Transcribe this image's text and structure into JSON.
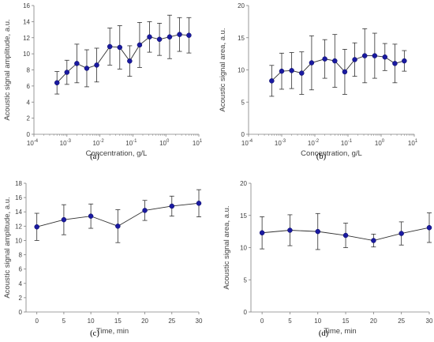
{
  "chart_data": [
    {
      "id": "a",
      "type": "scatter",
      "panel_label": "(a)",
      "xlabel": "Concentration, g/L",
      "ylabel": "Acoustic signal amplitude, a.u.",
      "xscale": "log",
      "xlim": [
        0.0001,
        10
      ],
      "ylim": [
        0,
        16
      ],
      "x_ticks": [
        0.0001,
        0.001,
        0.01,
        0.1,
        1,
        10
      ],
      "x_tick_labels": [
        [
          "10",
          "-4"
        ],
        [
          "10",
          "-3"
        ],
        [
          "10",
          "-2"
        ],
        [
          "10",
          "-1"
        ],
        [
          "10",
          "0"
        ],
        [
          "10",
          "1"
        ]
      ],
      "y_ticks": [
        0,
        2,
        4,
        6,
        8,
        10,
        12,
        14,
        16
      ],
      "y_tick_labels": [
        "0",
        "2",
        "4",
        "6",
        "8",
        "10",
        "12",
        "14",
        "16"
      ],
      "grid": false,
      "marker_color": "#1a1aa0",
      "series": [
        {
          "x": [
            0.0005,
            0.001,
            0.002,
            0.004,
            0.008,
            0.02,
            0.04,
            0.08,
            0.16,
            0.32,
            0.64,
            1.3,
            2.6,
            5.0
          ],
          "y": [
            6.4,
            7.7,
            8.8,
            8.2,
            8.6,
            10.9,
            10.8,
            9.1,
            11.1,
            12.1,
            11.8,
            12.1,
            12.4,
            12.3
          ],
          "err": [
            1.4,
            1.5,
            2.4,
            2.3,
            2.1,
            2.3,
            2.7,
            1.9,
            2.8,
            1.9,
            2.0,
            2.7,
            2.1,
            2.2
          ]
        }
      ]
    },
    {
      "id": "b",
      "type": "scatter",
      "panel_label": "(b)",
      "xlabel": "Concentration, g/L",
      "ylabel": "Acoustic signal area, a.u.",
      "xscale": "log",
      "xlim": [
        0.0001,
        10
      ],
      "ylim": [
        0,
        20
      ],
      "x_ticks": [
        0.0001,
        0.001,
        0.01,
        0.1,
        1,
        10
      ],
      "x_tick_labels": [
        [
          "10",
          "-4"
        ],
        [
          "10",
          "-3"
        ],
        [
          "10",
          "-2"
        ],
        [
          "10",
          "-1"
        ],
        [
          "10",
          "0"
        ],
        [
          "10",
          "1"
        ]
      ],
      "y_ticks": [
        0,
        5,
        10,
        15,
        20
      ],
      "y_tick_labels": [
        "0",
        "5",
        "10",
        "15",
        "20"
      ],
      "grid": false,
      "marker_color": "#1a1aa0",
      "series": [
        {
          "x": [
            0.0005,
            0.001,
            0.002,
            0.004,
            0.008,
            0.02,
            0.04,
            0.08,
            0.16,
            0.32,
            0.64,
            1.3,
            2.6,
            5.0
          ],
          "y": [
            8.3,
            9.8,
            9.9,
            9.5,
            11.1,
            11.7,
            11.4,
            9.7,
            11.6,
            12.2,
            12.2,
            12.0,
            11.0,
            11.4
          ],
          "err": [
            2.4,
            2.8,
            2.8,
            3.3,
            4.2,
            3.0,
            4.1,
            3.5,
            2.6,
            4.2,
            3.5,
            2.1,
            3.0,
            1.6
          ]
        }
      ]
    },
    {
      "id": "c",
      "type": "scatter",
      "panel_label": "(c)",
      "xlabel": "Time, min",
      "ylabel": "Acoustic signal amplitude, a.u.",
      "xscale": "linear",
      "xlim": [
        -2,
        30
      ],
      "ylim": [
        0,
        18
      ],
      "x_ticks": [
        0,
        5,
        10,
        15,
        20,
        25,
        30
      ],
      "x_tick_labels": [
        "0",
        "5",
        "10",
        "15",
        "20",
        "25",
        "30"
      ],
      "y_ticks": [
        0,
        2,
        4,
        6,
        8,
        10,
        12,
        14,
        16,
        18
      ],
      "y_tick_labels": [
        "0",
        "2",
        "4",
        "6",
        "8",
        "10",
        "12",
        "14",
        "16",
        "18"
      ],
      "grid": false,
      "marker_color": "#1a1aa0",
      "series": [
        {
          "x": [
            0,
            5,
            10,
            15,
            20,
            25,
            30
          ],
          "y": [
            11.9,
            12.9,
            13.4,
            12.0,
            14.2,
            14.8,
            15.2
          ],
          "err": [
            1.9,
            2.1,
            1.7,
            2.3,
            1.4,
            1.4,
            1.9
          ]
        }
      ]
    },
    {
      "id": "d",
      "type": "scatter",
      "panel_label": "(d)",
      "xlabel": "Time, min",
      "ylabel": "Acoustic signal area, a.u.",
      "xscale": "linear",
      "xlim": [
        -2,
        30
      ],
      "ylim": [
        0,
        20
      ],
      "x_ticks": [
        0,
        5,
        10,
        15,
        20,
        25,
        30
      ],
      "x_tick_labels": [
        "0",
        "5",
        "10",
        "15",
        "20",
        "25",
        "30"
      ],
      "y_ticks": [
        0,
        5,
        10,
        15,
        20
      ],
      "y_tick_labels": [
        "0",
        "5",
        "10",
        "15",
        "20"
      ],
      "grid": false,
      "marker_color": "#1a1aa0",
      "series": [
        {
          "x": [
            0,
            5,
            10,
            15,
            20,
            25,
            30
          ],
          "y": [
            12.3,
            12.7,
            12.5,
            11.9,
            11.1,
            12.2,
            13.1
          ],
          "err": [
            2.5,
            2.4,
            2.8,
            1.9,
            1.0,
            1.8,
            2.3
          ]
        }
      ]
    }
  ]
}
